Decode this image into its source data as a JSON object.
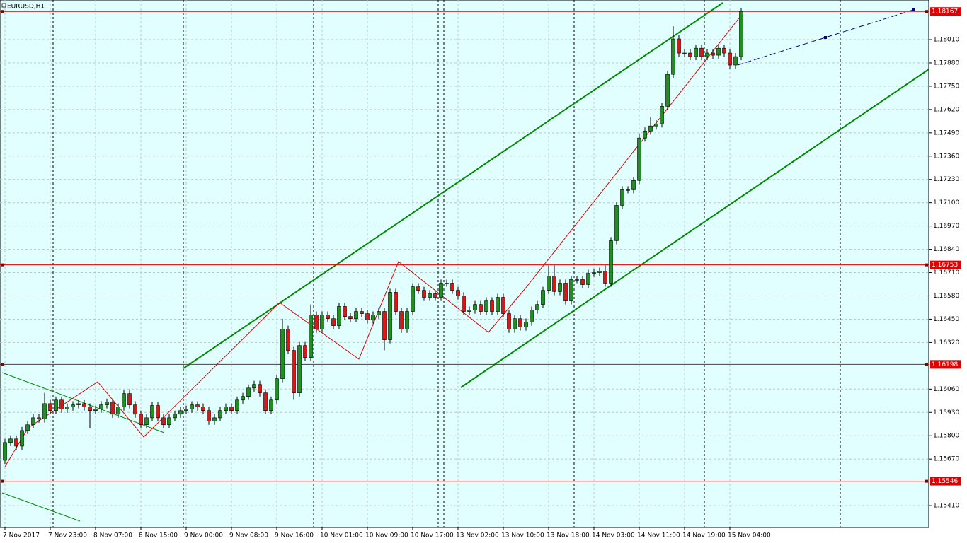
{
  "chart_data": {
    "type": "candlestick",
    "title": "EURUSD,H1",
    "categories": [
      "7 Nov 2017",
      null,
      null,
      null,
      null,
      null,
      null,
      null,
      "7 Nov 23:00",
      null,
      null,
      null,
      null,
      null,
      null,
      null,
      "8 Nov 07:00",
      null,
      null,
      null,
      null,
      null,
      null,
      null,
      "8 Nov 15:00",
      null,
      null,
      null,
      null,
      null,
      null,
      null,
      "9 Nov 00:00",
      null,
      null,
      null,
      null,
      null,
      null,
      null,
      "9 Nov 08:00",
      null,
      null,
      null,
      null,
      null,
      null,
      null,
      "9 Nov 16:00",
      null,
      null,
      null,
      null,
      null,
      null,
      null,
      "10 Nov 01:00",
      null,
      null,
      null,
      null,
      null,
      null,
      null,
      "10 Nov 09:00",
      null,
      null,
      null,
      null,
      null,
      null,
      null,
      "10 Nov 17:00",
      null,
      null,
      null,
      null,
      null,
      null,
      null,
      "13 Nov 02:00",
      null,
      null,
      null,
      null,
      null,
      null,
      null,
      "13 Nov 10:00",
      null,
      null,
      null,
      null,
      null,
      null,
      null,
      "13 Nov 18:00",
      null,
      null,
      null,
      null,
      null,
      null,
      null,
      "14 Nov 03:00",
      null,
      null,
      null,
      null,
      null,
      null,
      null,
      "14 Nov 11:00",
      null,
      null,
      null,
      null,
      null,
      null,
      null,
      "14 Nov 19:00",
      null,
      null,
      null,
      null,
      null,
      null,
      null,
      "15 Nov 04:00",
      null,
      null
    ],
    "open": [
      1.15663,
      1.15762,
      1.15782,
      1.15742,
      1.15829,
      1.15861,
      1.159,
      1.15893,
      1.15979,
      1.1594,
      1.15999,
      1.15948,
      1.1596,
      1.15972,
      1.15979,
      1.1596,
      1.1594,
      1.15948,
      1.15972,
      1.15987,
      1.1592,
      1.1596,
      1.16035,
      1.15972,
      1.1592,
      1.15861,
      1.159,
      1.15968,
      1.159,
      1.15861,
      1.159,
      1.1592,
      1.1594,
      1.15948,
      1.15972,
      1.1596,
      1.1594,
      1.15881,
      1.159,
      1.1594,
      1.1596,
      1.1594,
      1.15999,
      1.16019,
      1.16066,
      1.16086,
      1.16039,
      1.1594,
      1.15999,
      1.16118,
      1.16394,
      1.16276,
      1.16039,
      1.16303,
      1.16236,
      1.16473,
      1.16394,
      1.16473,
      1.16453,
      1.16414,
      1.16521,
      1.16465,
      1.16453,
      1.16493,
      1.16481,
      1.16446,
      1.16473,
      1.16493,
      1.16335,
      1.166,
      1.16493,
      1.16394,
      1.16493,
      1.16631,
      1.16611,
      1.16572,
      1.16592,
      1.16572,
      1.16651,
      1.16651,
      1.16611,
      1.1658,
      1.16493,
      1.16501,
      1.16532,
      1.16493,
      1.16552,
      1.16493,
      1.16572,
      1.16481,
      1.16394,
      1.16453,
      1.16406,
      1.16434,
      1.16501,
      1.16532,
      1.16611,
      1.1669,
      1.16604,
      1.16651,
      1.16552,
      1.16671,
      1.16671,
      1.16643,
      1.16706,
      1.1671,
      1.16718,
      1.16651,
      1.16888,
      1.17085,
      1.17172,
      1.17172,
      1.17224,
      1.17461,
      1.175,
      1.17528,
      1.1754,
      1.17638,
      1.17816,
      1.18014,
      1.17935,
      1.17935,
      1.17915,
      1.17962,
      1.17915,
      1.17935,
      1.17923,
      1.17962,
      1.17935,
      1.17868,
      1.17915
    ],
    "high": [
      1.15782,
      1.15802,
      1.15802,
      1.15849,
      1.15881,
      1.1592,
      1.1592,
      1.16039,
      1.15999,
      1.16019,
      1.16019,
      1.1598,
      1.15992,
      1.15999,
      1.15999,
      1.1598,
      1.15968,
      1.15992,
      1.16007,
      1.16007,
      1.1598,
      1.16055,
      1.16055,
      1.15992,
      1.1594,
      1.1592,
      1.15988,
      1.15988,
      1.1592,
      1.1592,
      1.1594,
      1.1596,
      1.15968,
      1.15992,
      1.15992,
      1.1598,
      1.1596,
      1.1592,
      1.1596,
      1.1598,
      1.1598,
      1.16019,
      1.16039,
      1.16086,
      1.16106,
      1.16106,
      1.16059,
      1.16019,
      1.16138,
      1.16453,
      1.16414,
      1.16296,
      1.16323,
      1.16323,
      1.16532,
      1.16493,
      1.16493,
      1.16493,
      1.16473,
      1.16541,
      1.16541,
      1.16485,
      1.16513,
      1.16513,
      1.16501,
      1.16493,
      1.16513,
      1.16513,
      1.1662,
      1.1662,
      1.16513,
      1.16513,
      1.16651,
      1.16651,
      1.16631,
      1.16612,
      1.16612,
      1.16671,
      1.16671,
      1.16671,
      1.16631,
      1.166,
      1.16521,
      1.16552,
      1.16552,
      1.16572,
      1.16572,
      1.16592,
      1.16592,
      1.16501,
      1.16473,
      1.16473,
      1.16454,
      1.16521,
      1.16552,
      1.16631,
      1.1675,
      1.1675,
      1.16671,
      1.16671,
      1.16691,
      1.16691,
      1.16691,
      1.16726,
      1.1673,
      1.16738,
      1.1675,
      1.16908,
      1.17105,
      1.17192,
      1.17192,
      1.17244,
      1.17481,
      1.1752,
      1.1758,
      1.1756,
      1.17658,
      1.17836,
      1.18084,
      1.18034,
      1.17955,
      1.17955,
      1.17982,
      1.17982,
      1.17955,
      1.17955,
      1.17982,
      1.17982,
      1.17955,
      1.17935,
      1.18187
    ],
    "low": [
      1.15643,
      1.15742,
      1.15722,
      1.15722,
      1.15809,
      1.15841,
      1.15873,
      1.15873,
      1.1592,
      1.1592,
      1.15928,
      1.15928,
      1.1594,
      1.15952,
      1.1594,
      1.1584,
      1.1592,
      1.15928,
      1.15952,
      1.159,
      1.159,
      1.1594,
      1.15952,
      1.159,
      1.15841,
      1.15841,
      1.1588,
      1.1588,
      1.15841,
      1.15841,
      1.1588,
      1.159,
      1.1592,
      1.15928,
      1.1594,
      1.1592,
      1.15861,
      1.15861,
      1.1588,
      1.1592,
      1.1592,
      1.1592,
      1.15979,
      1.15999,
      1.16046,
      1.16019,
      1.1592,
      1.1592,
      1.15979,
      1.16098,
      1.16256,
      1.16,
      1.16019,
      1.16216,
      1.16216,
      1.16374,
      1.16374,
      1.16433,
      1.16394,
      1.16394,
      1.16445,
      1.16433,
      1.16433,
      1.16461,
      1.16426,
      1.16426,
      1.16453,
      1.16276,
      1.16315,
      1.16473,
      1.16374,
      1.16374,
      1.16473,
      1.16591,
      1.16552,
      1.16552,
      1.16552,
      1.16552,
      1.16631,
      1.16591,
      1.1656,
      1.16473,
      1.16473,
      1.16481,
      1.16473,
      1.16473,
      1.16473,
      1.16473,
      1.16461,
      1.16374,
      1.16374,
      1.16386,
      1.16386,
      1.16414,
      1.16481,
      1.16512,
      1.16591,
      1.16584,
      1.16584,
      1.16532,
      1.16532,
      1.16651,
      1.16623,
      1.16623,
      1.16686,
      1.1669,
      1.16631,
      1.16631,
      1.16868,
      1.17065,
      1.17152,
      1.17152,
      1.17204,
      1.17441,
      1.1748,
      1.17508,
      1.1752,
      1.17618,
      1.17796,
      1.17915,
      1.17915,
      1.17895,
      1.17895,
      1.17895,
      1.17895,
      1.17903,
      1.17903,
      1.17915,
      1.17848,
      1.17848,
      1.17895
    ],
    "close": [
      1.15762,
      1.15782,
      1.15742,
      1.15829,
      1.15861,
      1.159,
      1.15893,
      1.15979,
      1.1594,
      1.15999,
      1.15948,
      1.1596,
      1.15972,
      1.15979,
      1.1596,
      1.1594,
      1.15948,
      1.15972,
      1.15987,
      1.1592,
      1.1596,
      1.16035,
      1.15972,
      1.1592,
      1.15861,
      1.159,
      1.15968,
      1.159,
      1.15861,
      1.159,
      1.1592,
      1.1594,
      1.15948,
      1.15972,
      1.1596,
      1.1594,
      1.15881,
      1.159,
      1.1594,
      1.1596,
      1.1594,
      1.15999,
      1.16019,
      1.16066,
      1.16086,
      1.16039,
      1.1594,
      1.15999,
      1.16118,
      1.16394,
      1.16276,
      1.16039,
      1.16303,
      1.16236,
      1.16473,
      1.16394,
      1.16473,
      1.16453,
      1.16414,
      1.16521,
      1.16465,
      1.16453,
      1.16493,
      1.16481,
      1.16446,
      1.16473,
      1.16493,
      1.16335,
      1.166,
      1.16493,
      1.16394,
      1.16493,
      1.16631,
      1.16611,
      1.16572,
      1.16592,
      1.16572,
      1.16651,
      1.16651,
      1.16611,
      1.1658,
      1.16493,
      1.16501,
      1.16532,
      1.16493,
      1.16552,
      1.16493,
      1.16572,
      1.16481,
      1.16394,
      1.16453,
      1.16406,
      1.16434,
      1.16501,
      1.16532,
      1.16611,
      1.1669,
      1.16604,
      1.16651,
      1.16552,
      1.16671,
      1.16671,
      1.16643,
      1.16706,
      1.1671,
      1.16718,
      1.16651,
      1.16888,
      1.17085,
      1.17172,
      1.17172,
      1.17224,
      1.17461,
      1.175,
      1.17528,
      1.1754,
      1.17638,
      1.17816,
      1.18014,
      1.17935,
      1.17935,
      1.17915,
      1.17962,
      1.17915,
      1.17935,
      1.17923,
      1.17962,
      1.17935,
      1.17868,
      1.17915,
      1.18167
    ],
    "up_color": "#1f8f1f",
    "down_color": "#d81818",
    "ylim": [
      1.15288,
      1.18231
    ],
    "yticks": [
      {
        "value": 1.1801,
        "label": "1.18010"
      },
      {
        "value": 1.1788,
        "label": "1.17880"
      },
      {
        "value": 1.1775,
        "label": "1.17750"
      },
      {
        "value": 1.1762,
        "label": "1.17620"
      },
      {
        "value": 1.1749,
        "label": "1.17490"
      },
      {
        "value": 1.1736,
        "label": "1.17360"
      },
      {
        "value": 1.1723,
        "label": "1.17230"
      },
      {
        "value": 1.171,
        "label": "1.17100"
      },
      {
        "value": 1.1697,
        "label": "1.16970"
      },
      {
        "value": 1.1684,
        "label": "1.16840"
      },
      {
        "value": 1.1671,
        "label": "1.16710"
      },
      {
        "value": 1.1658,
        "label": "1.16580"
      },
      {
        "value": 1.1645,
        "label": "1.16450"
      },
      {
        "value": 1.1632,
        "label": "1.16320"
      },
      {
        "value": 1.1606,
        "label": "1.16060"
      },
      {
        "value": 1.1593,
        "label": "1.15930"
      },
      {
        "value": 1.158,
        "label": "1.15800"
      },
      {
        "value": 1.1567,
        "label": "1.15670"
      },
      {
        "value": 1.1541,
        "label": "1.15410"
      }
    ],
    "levels": [
      1.18167,
      1.16753,
      1.16198,
      1.15546
    ],
    "level_color": "#e00000",
    "grid": true
  }
}
